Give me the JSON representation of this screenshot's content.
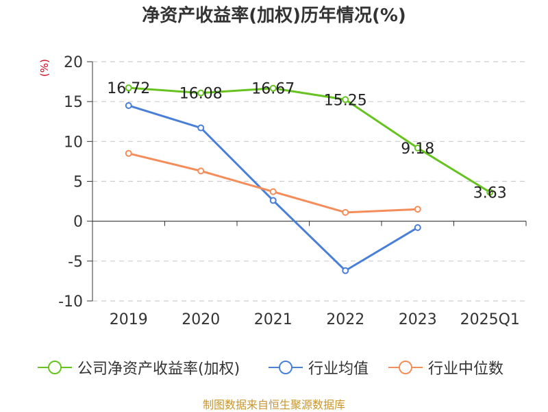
{
  "title": "净资产收益率(加权)历年情况(%)",
  "unit_label": "(%)",
  "source_text": "制图数据来自恒生聚源数据库",
  "colors": {
    "company": "#66c31f",
    "industry_avg": "#4a7fd8",
    "industry_median": "#f58d5a",
    "grid": "#cccccc",
    "axis": "#333333",
    "unit": "#d0021b",
    "source": "#c8962d"
  },
  "chart_data": {
    "type": "line",
    "title": "净资产收益率(加权)历年情况(%)",
    "ylabel": "(%)",
    "xlabel": "",
    "categories": [
      "2019",
      "2020",
      "2021",
      "2022",
      "2023",
      "2025Q1"
    ],
    "ylim": [
      -10,
      20
    ],
    "yticks": [
      20,
      15,
      10,
      5,
      0,
      -5,
      -10
    ],
    "grid": true,
    "legend_position": "bottom",
    "series": [
      {
        "name": "公司净资产收益率(加权)",
        "values": [
          16.72,
          16.08,
          16.67,
          15.25,
          9.18,
          3.63
        ],
        "labels": [
          "16.72",
          "16.08",
          "16.67",
          "15.25",
          "9.18",
          "3.63"
        ]
      },
      {
        "name": "行业均值",
        "values": [
          14.5,
          11.7,
          2.6,
          -6.2,
          -0.8,
          null
        ]
      },
      {
        "name": "行业中位数",
        "values": [
          8.5,
          6.3,
          3.7,
          1.1,
          1.5,
          null
        ]
      }
    ]
  }
}
